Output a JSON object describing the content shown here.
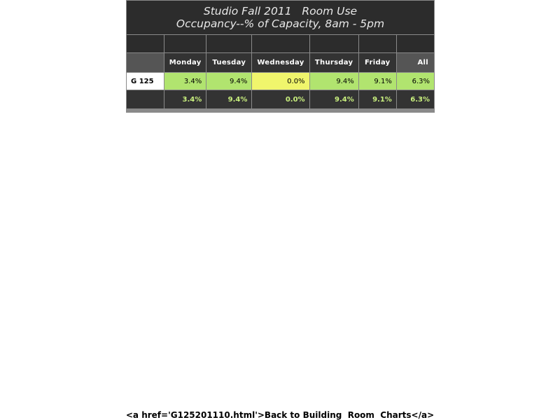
{
  "title": {
    "line1": "Studio Fall 2011   Room Use",
    "line2": "Occupancy--% of Capacity, 8am - 5pm"
  },
  "columns": [
    "Monday",
    "Tuesday",
    "Wednesday",
    "Thursday",
    "Friday",
    "All"
  ],
  "rows": [
    {
      "room": "G 125",
      "values": [
        "3.4%",
        "9.4%",
        "0.0%",
        "9.4%",
        "9.1%",
        "6.3%"
      ],
      "cell_colors": [
        "#b1e46f",
        "#b1e46f",
        "#f0f56c",
        "#b1e46f",
        "#b1e46f",
        "#b1e46f"
      ]
    }
  ],
  "totals": [
    "3.4%",
    "9.4%",
    "0.0%",
    "9.4%",
    "9.1%",
    "6.3%"
  ],
  "footer": {
    "link_text": "<a href='G125201110.html'>Back to Building  Room  Charts</a>"
  },
  "colors": {
    "header_bg": "#2c2c2c",
    "green": "#b1e46f",
    "yellow": "#f0f56c",
    "total_text": "#c9f07e"
  }
}
